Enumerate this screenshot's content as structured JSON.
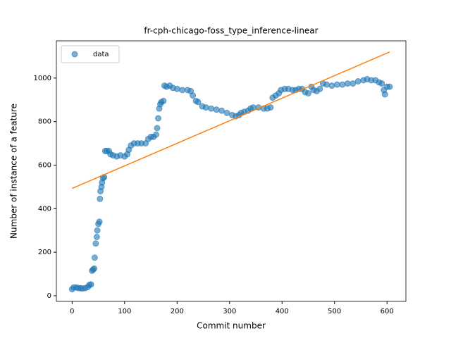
{
  "chart_data": {
    "type": "scatter",
    "title": "fr-cph-chicago-foss_type_inference-linear",
    "x_label": "Commit number",
    "y_label": "Number of instance of a feature",
    "xlim": [
      -30,
      636
    ],
    "ylim": [
      -26,
      1171
    ],
    "xticks": [
      0,
      100,
      200,
      300,
      400,
      500,
      600
    ],
    "yticks": [
      0,
      200,
      400,
      600,
      800,
      1000
    ],
    "legend": "upper left",
    "series": [
      {
        "name": "data",
        "color": "#1f77b4",
        "x": [
          0,
          3,
          8,
          12,
          16,
          20,
          25,
          30,
          33,
          36,
          38,
          40,
          42,
          43,
          45,
          47,
          48,
          50,
          52,
          53,
          54,
          56,
          57,
          59,
          61,
          63,
          66,
          70,
          73,
          78,
          85,
          92,
          100,
          105,
          108,
          112,
          118,
          125,
          132,
          140,
          145,
          150,
          155,
          160,
          162,
          164,
          166,
          168,
          170,
          174,
          176,
          180,
          186,
          192,
          200,
          210,
          220,
          226,
          230,
          236,
          240,
          248,
          255,
          265,
          275,
          285,
          295,
          305,
          312,
          318,
          322,
          328,
          335,
          340,
          345,
          355,
          365,
          372,
          378,
          382,
          388,
          394,
          398,
          405,
          412,
          420,
          426,
          432,
          438,
          444,
          450,
          456,
          460,
          466,
          472,
          478,
          485,
          495,
          505,
          515,
          525,
          535,
          545,
          555,
          562,
          570,
          578,
          585,
          590,
          594,
          596,
          600,
          605
        ],
        "values": [
          30,
          38,
          38,
          35,
          35,
          33,
          35,
          40,
          50,
          52,
          115,
          120,
          125,
          175,
          240,
          270,
          300,
          330,
          340,
          445,
          480,
          500,
          520,
          540,
          545,
          665,
          665,
          665,
          650,
          645,
          640,
          645,
          640,
          650,
          670,
          690,
          700,
          700,
          700,
          700,
          720,
          730,
          730,
          740,
          770,
          815,
          860,
          880,
          890,
          895,
          965,
          960,
          965,
          955,
          950,
          945,
          945,
          940,
          920,
          895,
          890,
          870,
          865,
          860,
          855,
          850,
          840,
          830,
          825,
          830,
          840,
          845,
          850,
          860,
          865,
          865,
          860,
          860,
          865,
          910,
          920,
          930,
          945,
          950,
          950,
          945,
          945,
          950,
          950,
          935,
          930,
          960,
          945,
          940,
          950,
          975,
          970,
          965,
          970,
          970,
          975,
          975,
          985,
          990,
          995,
          990,
          990,
          980,
          975,
          945,
          925,
          960,
          960
        ]
      }
    ],
    "fit": {
      "color": "#ff7f0e",
      "x": [
        0,
        605
      ],
      "values": [
        493,
        1120
      ]
    }
  }
}
